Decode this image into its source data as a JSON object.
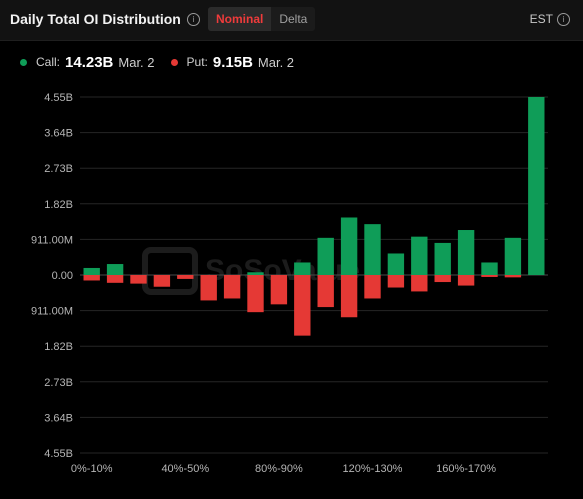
{
  "header": {
    "title": "Daily Total OI Distribution",
    "tabs": [
      {
        "label": "Nominal",
        "active": true
      },
      {
        "label": "Delta",
        "active": false
      }
    ],
    "timezone": "EST"
  },
  "legend": {
    "call": {
      "label": "Call:",
      "value": "14.23B",
      "date": "Mar. 2",
      "color": "#0f9d58"
    },
    "put": {
      "label": "Put:",
      "value": "9.15B",
      "date": "Mar. 2",
      "color": "#e53935"
    }
  },
  "watermark": "SoSoValue",
  "chart_data": {
    "type": "bar",
    "title": "Daily Total OI Distribution",
    "ylim": [
      -4.55,
      4.55
    ],
    "unit": "billion USD",
    "y_tick_labels": [
      "4.55B",
      "3.64B",
      "2.73B",
      "1.82B",
      "911.00M",
      "0.00",
      "911.00M",
      "1.82B",
      "2.73B",
      "3.64B",
      "4.55B"
    ],
    "y_ticks": [
      4.55,
      3.64,
      2.73,
      1.82,
      0.911,
      0,
      -0.911,
      -1.82,
      -2.73,
      -3.64,
      -4.55
    ],
    "x_tick_labels": [
      "0%-10%",
      "40%-50%",
      "80%-90%",
      "120%-130%",
      "160%-170%"
    ],
    "x_tick_indices": [
      0,
      4,
      8,
      12,
      16
    ],
    "category_count": 20,
    "grid": true,
    "series": [
      {
        "name": "Call",
        "color": "#0f9d58",
        "values": [
          0.18,
          0.28,
          0.0,
          0.0,
          0.0,
          0.0,
          0.0,
          0.07,
          0.0,
          0.32,
          0.95,
          1.47,
          1.3,
          0.55,
          0.98,
          0.82,
          1.15,
          0.32,
          0.95,
          4.55
        ]
      },
      {
        "name": "Put",
        "color": "#e53935",
        "values": [
          -0.14,
          -0.2,
          -0.22,
          -0.3,
          -0.1,
          -0.65,
          -0.6,
          -0.95,
          -0.75,
          -1.55,
          -0.82,
          -1.08,
          -0.6,
          -0.32,
          -0.42,
          -0.18,
          -0.27,
          -0.05,
          -0.06,
          0.0
        ]
      }
    ]
  }
}
